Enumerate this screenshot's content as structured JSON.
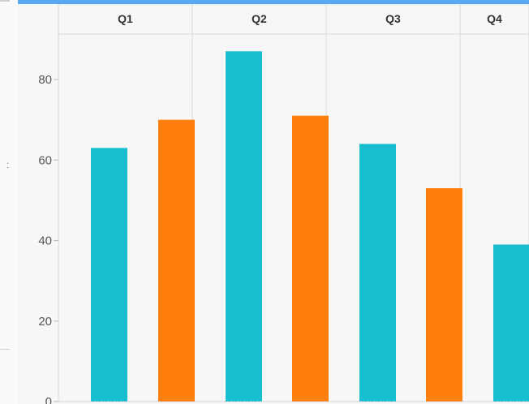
{
  "chart_data": {
    "type": "bar",
    "facets": [
      "Q1",
      "Q2",
      "Q3",
      "Q4"
    ],
    "series": [
      {
        "values": [
          63,
          87,
          64,
          39
        ]
      },
      {
        "values": [
          70,
          71,
          53,
          null
        ]
      }
    ],
    "y_ticks": [
      "0",
      "20",
      "40",
      "60",
      "80"
    ],
    "ylim": [
      0,
      90
    ],
    "grid": true,
    "legend": "none"
  },
  "colors": {
    "series": [
      "#17becf",
      "#ff7f0e"
    ],
    "facet_header": "#f7f7f7",
    "panel_border": "#d8d8d8",
    "page_accent": "#5aa8ef"
  }
}
